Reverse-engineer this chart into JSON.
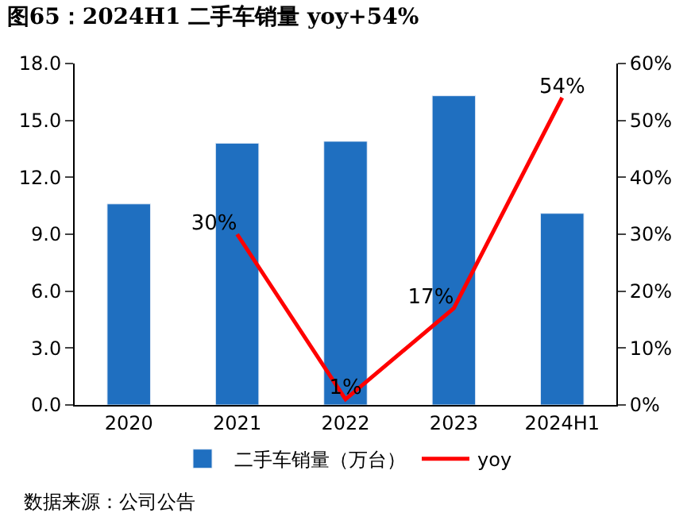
{
  "chart_data": {
    "type": "bar",
    "title": "图65：2024H1 二手车销量 yoy+54%",
    "categories": [
      "2020",
      "2021",
      "2022",
      "2023",
      "2024H1"
    ],
    "series": [
      {
        "name": "二手车销量（万台）",
        "color": "#1f6fc0",
        "values": [
          10.6,
          13.8,
          13.9,
          16.3,
          10.1
        ]
      },
      {
        "name": "yoy",
        "type": "line",
        "axis": "y2",
        "color": "#ff0000",
        "values": [
          null,
          30,
          1,
          17,
          54
        ],
        "value_labels": [
          null,
          "30%",
          "1%",
          "17%",
          "54%"
        ]
      }
    ],
    "ylim": [
      0,
      18
    ],
    "yticks": [
      {
        "value": 0,
        "label": "0.0"
      },
      {
        "value": 3,
        "label": "3.0"
      },
      {
        "value": 6,
        "label": "6.0"
      },
      {
        "value": 9,
        "label": "9.0"
      },
      {
        "value": 12,
        "label": "12.0"
      },
      {
        "value": 15,
        "label": "15.0"
      },
      {
        "value": 18,
        "label": "18.0"
      }
    ],
    "y2lim": [
      0,
      60
    ],
    "y2ticks": [
      {
        "value": 0,
        "label": "0%"
      },
      {
        "value": 10,
        "label": "10%"
      },
      {
        "value": 20,
        "label": "20%"
      },
      {
        "value": 30,
        "label": "30%"
      },
      {
        "value": 40,
        "label": "40%"
      },
      {
        "value": 50,
        "label": "50%"
      },
      {
        "value": 60,
        "label": "60%"
      }
    ],
    "legend": "bottom",
    "marker": "none",
    "line_style": "solid",
    "annotations": [
      "数据来源：公司公告"
    ]
  }
}
